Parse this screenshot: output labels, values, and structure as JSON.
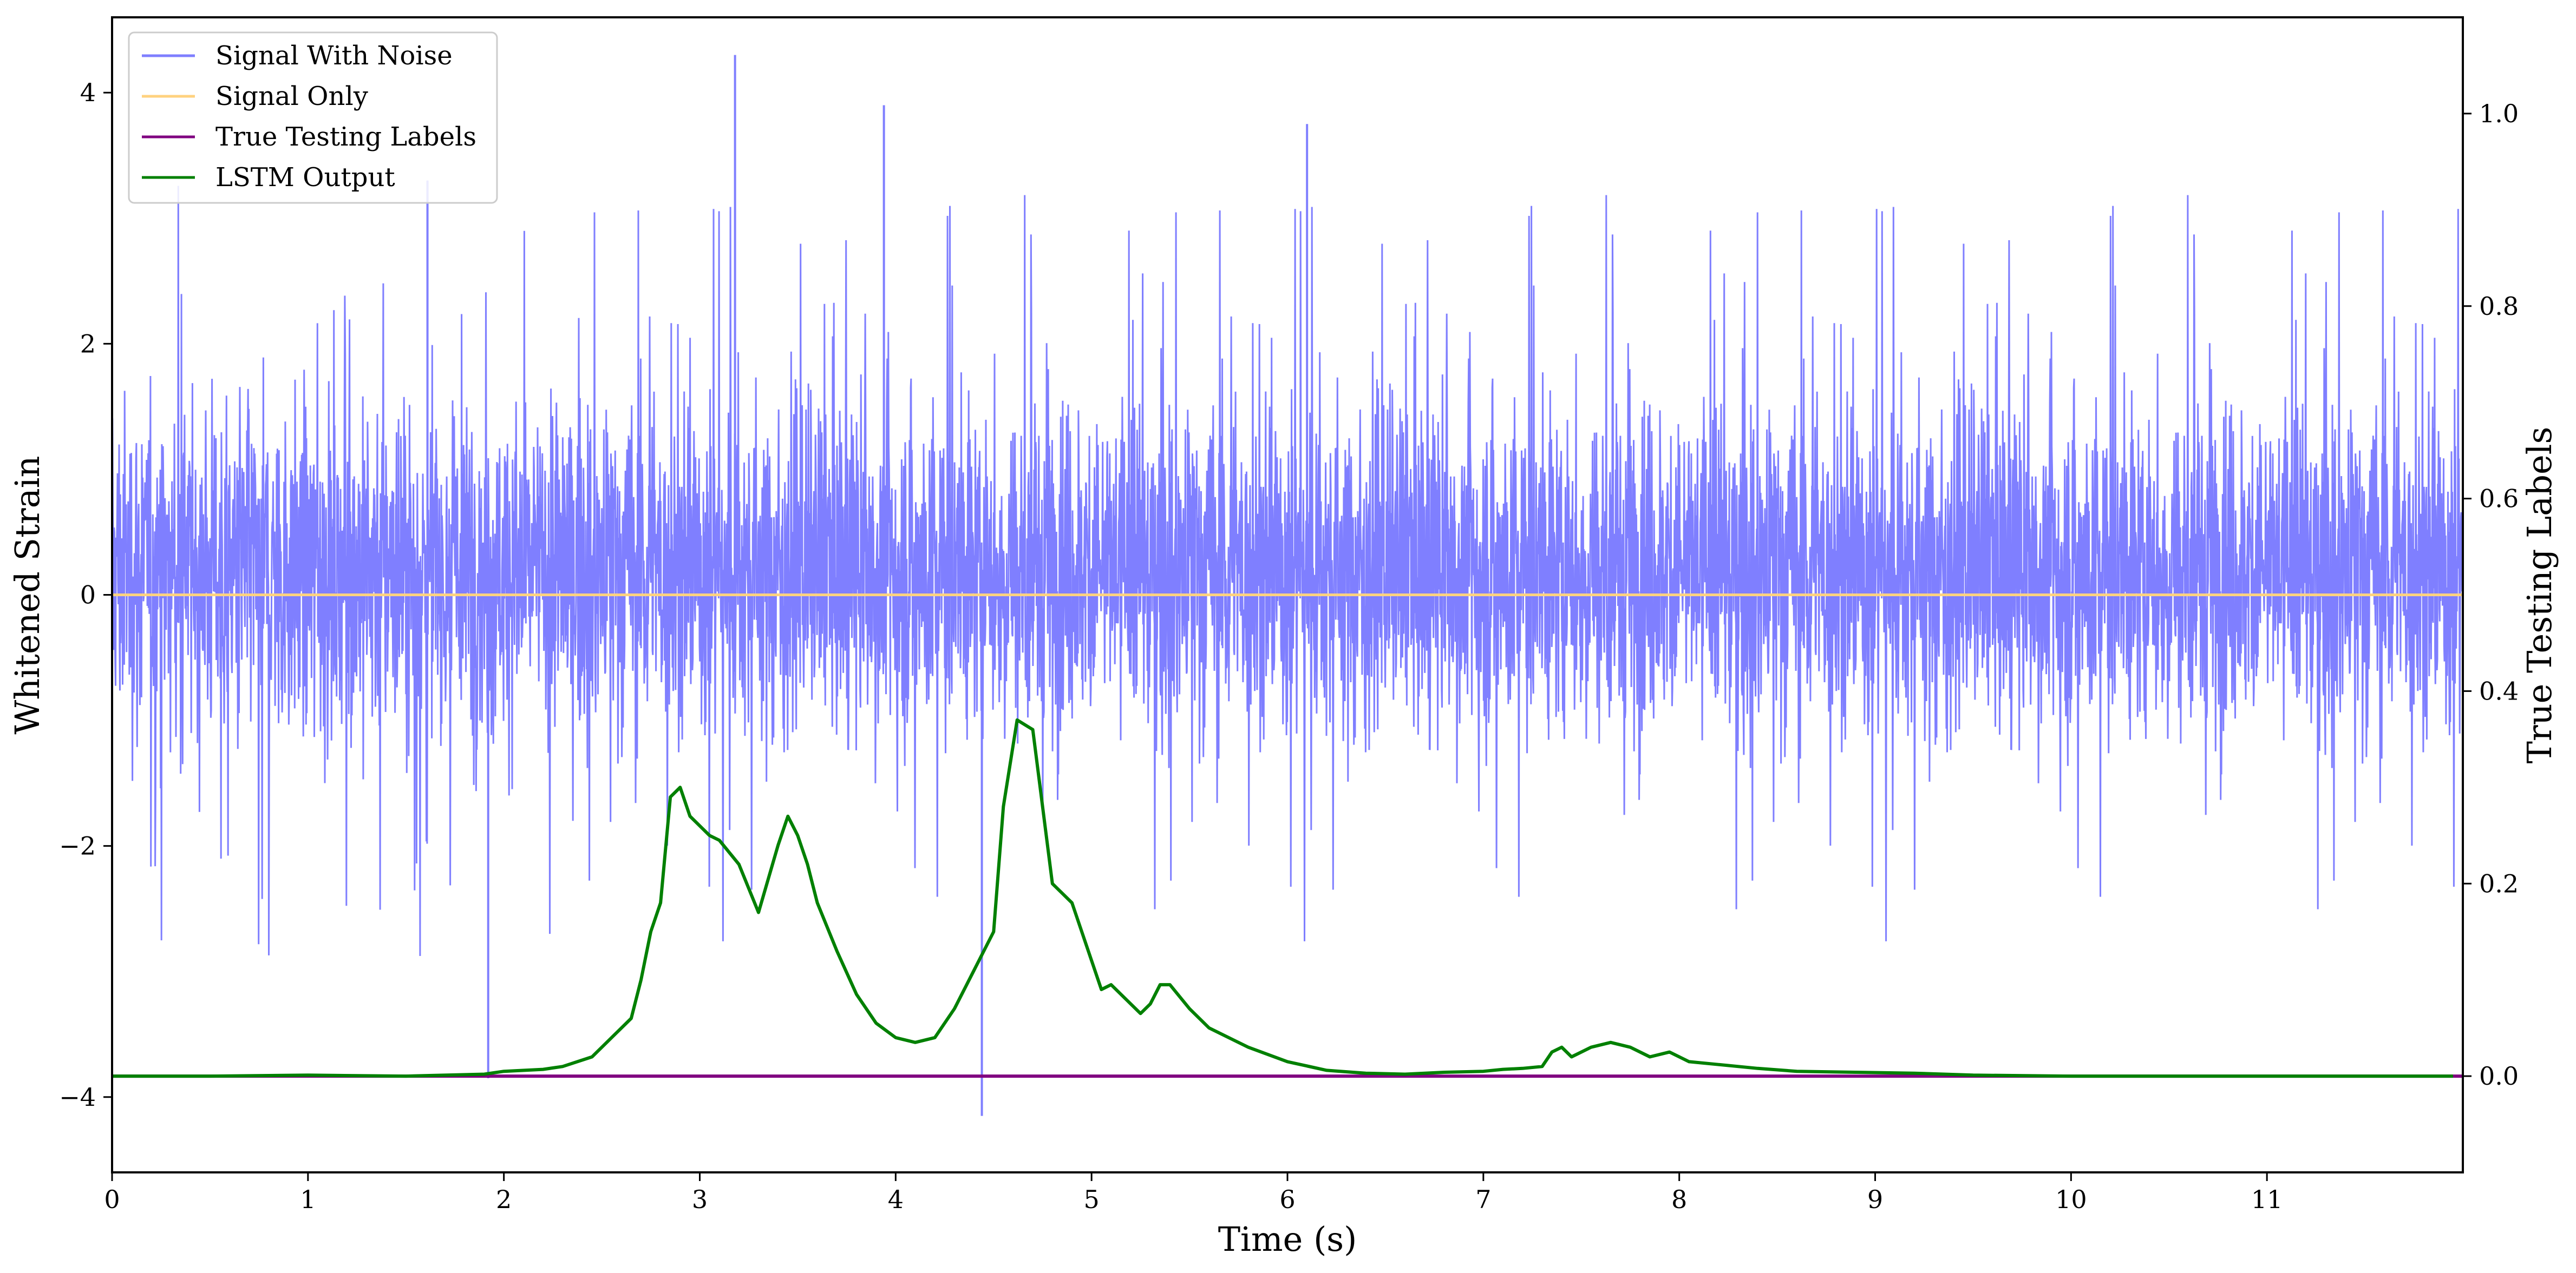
{
  "chart_data": {
    "type": "line",
    "xlabel": "Time (s)",
    "ylabel_left": "Whitened Strain",
    "ylabel_right": "True Testing Labels",
    "xlim": [
      0,
      12
    ],
    "ylim_left": [
      -4.6,
      4.6
    ],
    "ylim_right": [
      -0.1,
      1.1
    ],
    "x_ticks": [
      0,
      1,
      2,
      3,
      4,
      5,
      6,
      7,
      8,
      9,
      10,
      11
    ],
    "x_tick_labels": [
      "0",
      "1",
      "2",
      "3",
      "4",
      "5",
      "6",
      "7",
      "8",
      "9",
      "10",
      "11"
    ],
    "y_left_ticks": [
      4,
      2,
      0,
      -2,
      -4
    ],
    "y_left_tick_labels": [
      "4",
      "2",
      "0",
      "−2",
      "−4"
    ],
    "y_right_ticks": [
      1.0,
      0.8,
      0.6,
      0.4,
      0.2,
      0.0
    ],
    "y_right_tick_labels": [
      "1.0",
      "0.8",
      "0.6",
      "0.4",
      "0.2",
      "0.0"
    ],
    "grid": false,
    "legend_position": "top-left",
    "legend": [
      {
        "name": "Signal With Noise",
        "color": "#7f7fff"
      },
      {
        "name": "Signal Only",
        "color": "#ffd27f"
      },
      {
        "name": "True Testing Labels",
        "color": "#800080"
      },
      {
        "name": "LSTM Output",
        "color": "#008000"
      }
    ],
    "series": [
      {
        "name": "Signal With Noise",
        "axis": "left",
        "color": "#7f7fff",
        "kind": "noise",
        "x_range": [
          0,
          12
        ],
        "typical_range": [
          -1.5,
          1.9
        ],
        "extremes_x": [
          1.61,
          1.92,
          3.18,
          3.94,
          4.44,
          6.1
        ],
        "extremes_y": [
          3.3,
          -3.85,
          4.3,
          3.9,
          -4.15,
          3.75
        ]
      },
      {
        "name": "Signal Only",
        "axis": "left",
        "color": "#ffd27f",
        "x": [
          0,
          12
        ],
        "y": [
          0,
          0
        ]
      },
      {
        "name": "True Testing Labels",
        "axis": "right",
        "color": "#800080",
        "x": [
          0,
          12
        ],
        "y": [
          0,
          0
        ]
      },
      {
        "name": "LSTM Output",
        "axis": "right",
        "color": "#008000",
        "x": [
          0,
          0.5,
          1.0,
          1.5,
          1.9,
          2.0,
          2.2,
          2.3,
          2.45,
          2.55,
          2.65,
          2.7,
          2.75,
          2.8,
          2.85,
          2.9,
          2.95,
          3.0,
          3.05,
          3.1,
          3.2,
          3.3,
          3.4,
          3.45,
          3.5,
          3.55,
          3.6,
          3.7,
          3.8,
          3.9,
          4.0,
          4.1,
          4.2,
          4.3,
          4.4,
          4.5,
          4.55,
          4.62,
          4.7,
          4.8,
          4.9,
          5.0,
          5.05,
          5.1,
          5.2,
          5.25,
          5.3,
          5.35,
          5.4,
          5.5,
          5.6,
          5.8,
          6.0,
          6.2,
          6.4,
          6.6,
          6.8,
          7.0,
          7.1,
          7.2,
          7.3,
          7.35,
          7.4,
          7.45,
          7.55,
          7.65,
          7.75,
          7.85,
          7.95,
          8.05,
          8.2,
          8.4,
          8.6,
          8.9,
          9.2,
          9.5,
          10.0,
          11.0,
          11.95
        ],
        "y": [
          0.0,
          0.0,
          0.001,
          0.0,
          0.002,
          0.005,
          0.007,
          0.01,
          0.02,
          0.04,
          0.06,
          0.1,
          0.15,
          0.18,
          0.29,
          0.3,
          0.27,
          0.26,
          0.25,
          0.245,
          0.22,
          0.17,
          0.24,
          0.27,
          0.25,
          0.22,
          0.18,
          0.13,
          0.085,
          0.055,
          0.04,
          0.035,
          0.04,
          0.07,
          0.11,
          0.15,
          0.28,
          0.37,
          0.36,
          0.2,
          0.18,
          0.12,
          0.09,
          0.095,
          0.075,
          0.065,
          0.075,
          0.095,
          0.095,
          0.07,
          0.05,
          0.03,
          0.015,
          0.006,
          0.003,
          0.002,
          0.004,
          0.005,
          0.007,
          0.008,
          0.01,
          0.025,
          0.03,
          0.02,
          0.03,
          0.035,
          0.03,
          0.02,
          0.025,
          0.015,
          0.012,
          0.008,
          0.005,
          0.004,
          0.003,
          0.001,
          0.0,
          0.0,
          0.0
        ]
      }
    ]
  }
}
